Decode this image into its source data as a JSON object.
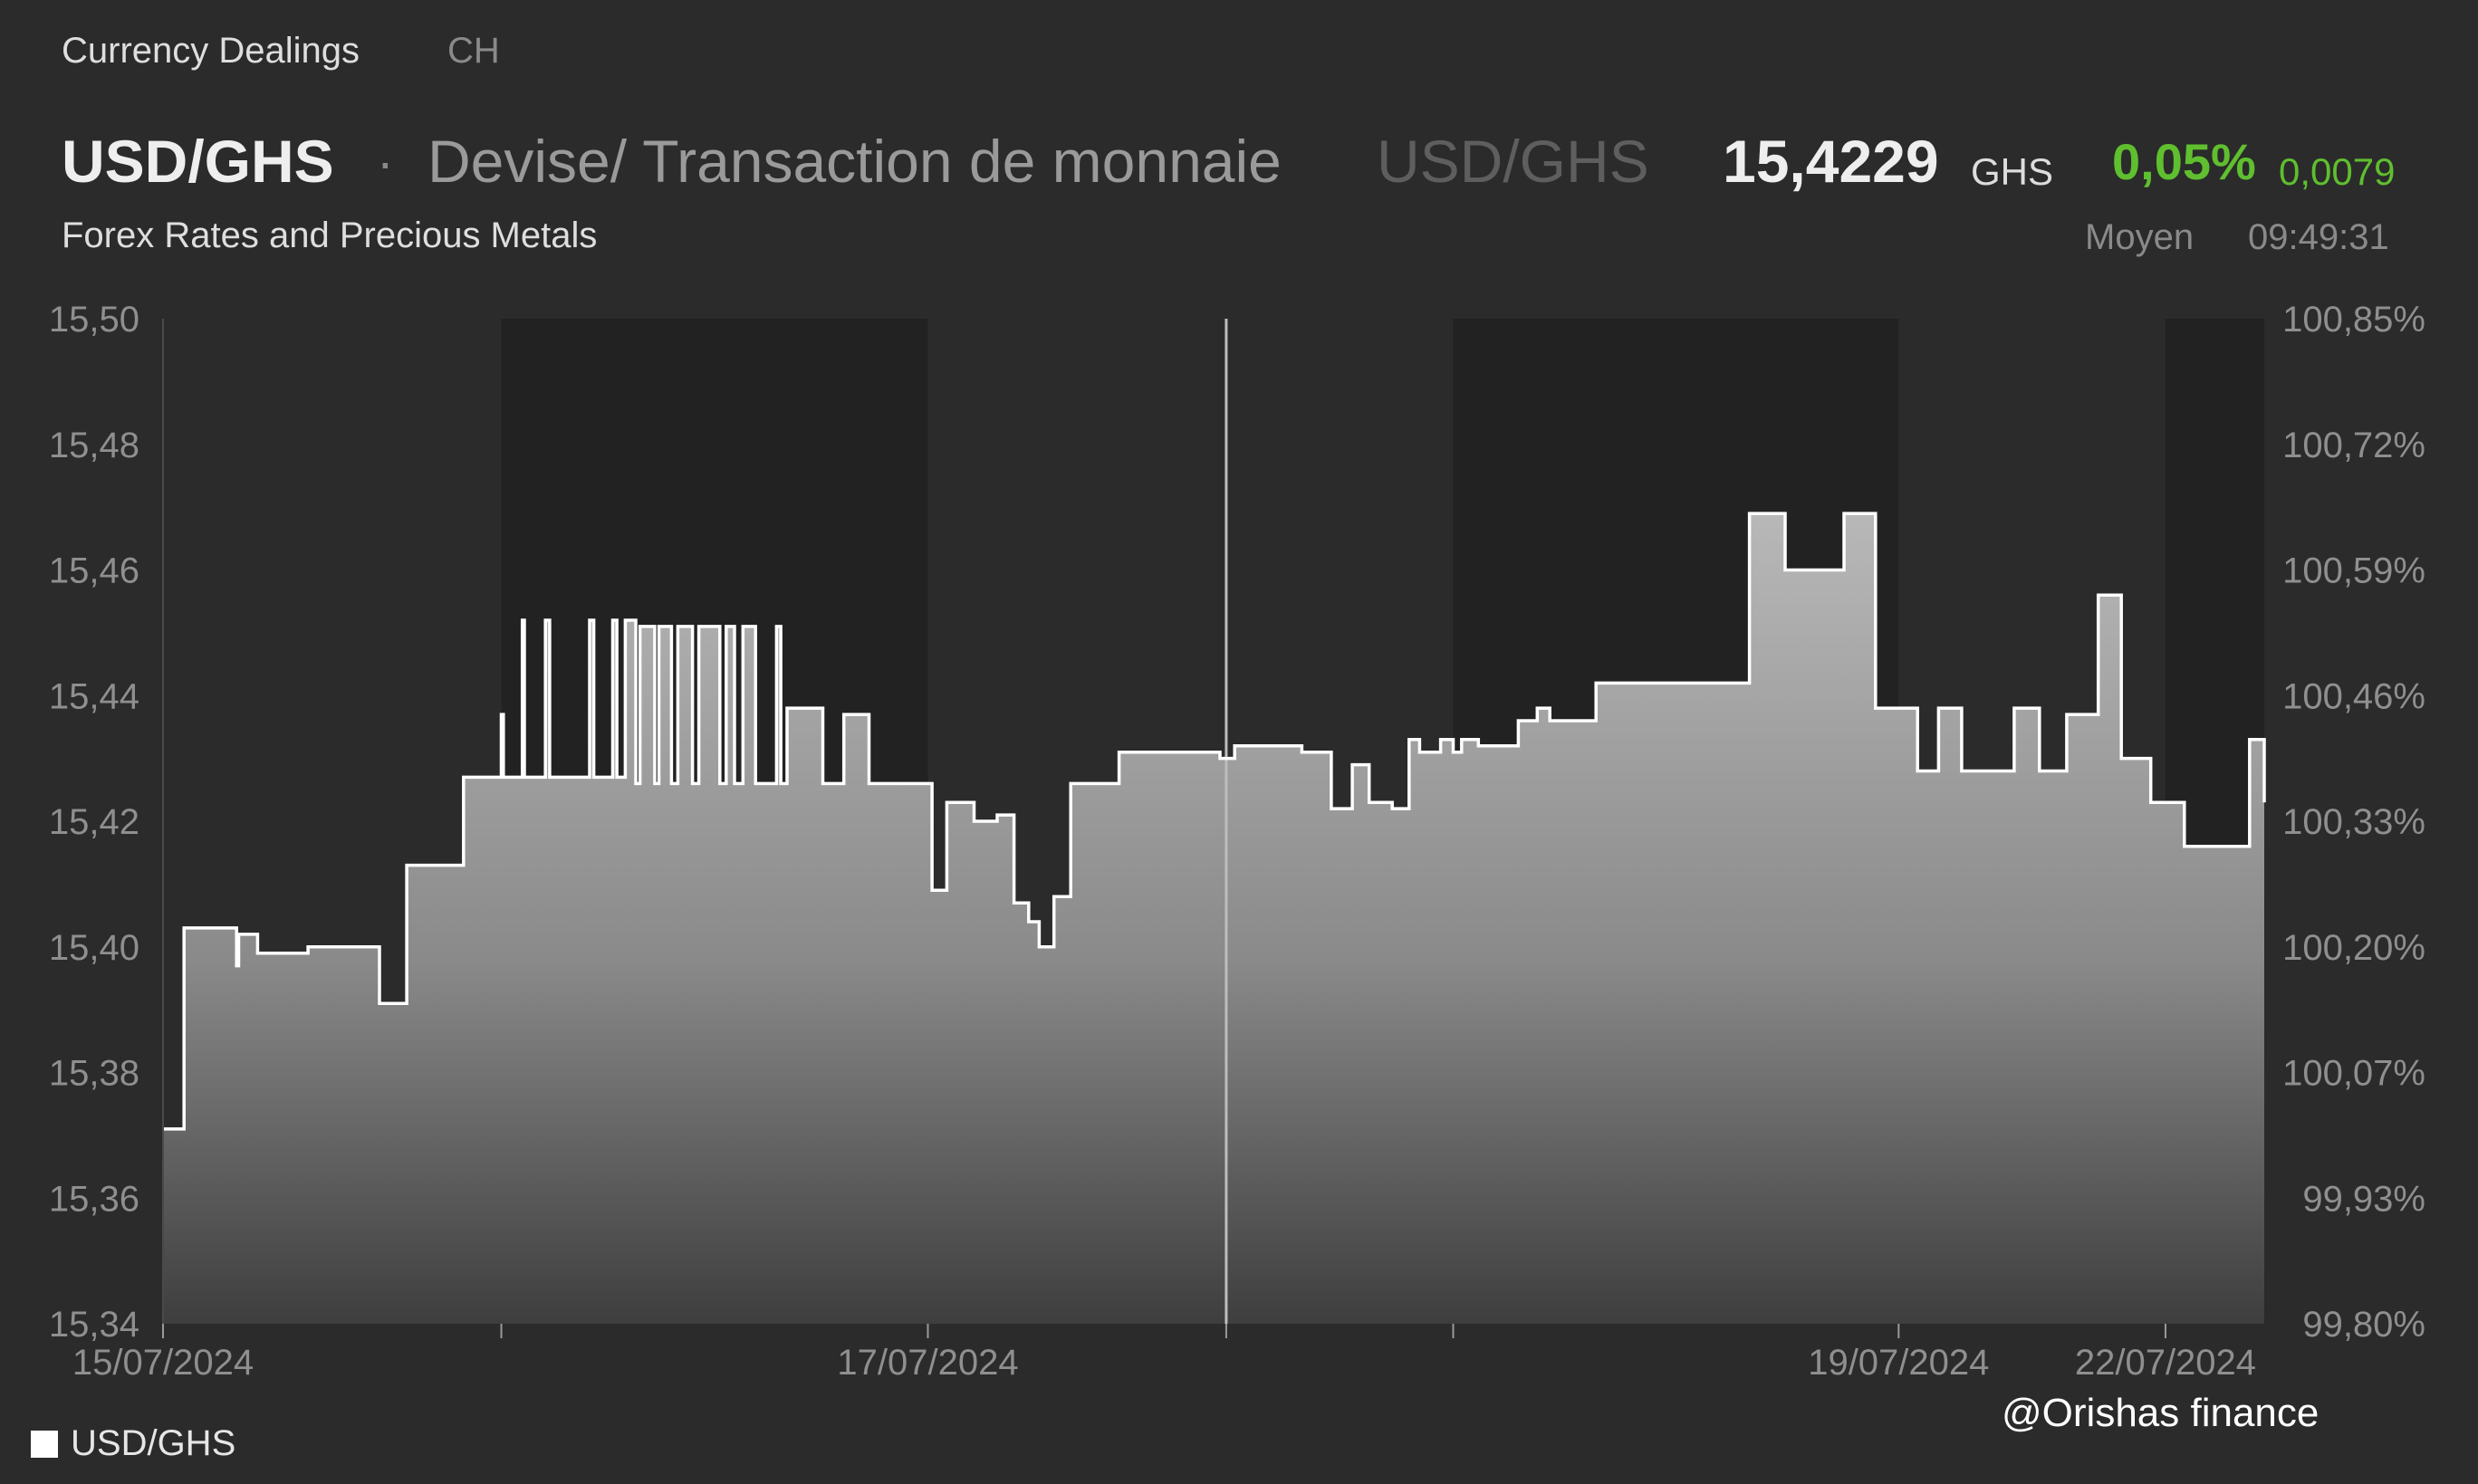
{
  "header": {
    "source_link": "Currency Dealings",
    "exchange": "CH",
    "symbol": "USD/GHS",
    "separator": "·",
    "description": "Devise/ Transaction de monnaie",
    "symbol_repeat": "USD/GHS",
    "price": "15,4229",
    "price_unit": "GHS",
    "change_pct": "0,05%",
    "change_abs": "0,0079",
    "subtitle": "Forex Rates and Precious Metals",
    "quote_type": "Moyen",
    "quote_time": "09:49:31"
  },
  "legend_label": "USD/GHS",
  "watermark": "@Orishas finance",
  "colors": {
    "background": "#2b2b2b",
    "session_shade": "#222222",
    "line": "#ffffff",
    "positive": "#5fbf2f"
  },
  "chart_data": {
    "type": "area",
    "series": [
      {
        "name": "USD/GHS",
        "x": [
          0,
          1,
          3.2,
          3.5,
          3.6,
          4.4,
          4.5,
          4.9,
          6.8,
          6.9,
          10.2,
          10.3,
          11.6,
          11.7,
          13,
          13.4,
          14.2,
          14.3,
          16.1,
          16.2,
          17.1,
          17.2,
          18.2,
          18.4,
          19.3,
          20.3,
          20.5,
          21.4,
          21.6,
          22,
          22.5,
          22.7,
          23.4,
          23.6,
          24.2,
          24.5,
          25.2,
          25.5,
          26.5,
          26.8,
          27.2,
          27.6,
          28.2,
          29.2,
          29.4,
          29.7,
          31.4,
          32.4,
          33.6,
          35.6,
          36.4,
          36.6,
          37.3,
          38.6,
          39.7,
          40.5,
          41.2,
          41.7,
          42.4,
          43.2,
          44.1,
          45.5,
          48.7,
          50,
          50.3,
          51,
          51.8,
          52.2,
          53.9,
          54.2,
          55.6,
          56.6,
          57.4,
          58.5,
          59.3,
          59.8,
          60.8,
          61.4,
          61.8,
          62.6,
          64.5,
          65.4,
          66,
          67.4,
          68.2,
          69.6,
          70.8,
          73.8,
          75.5,
          76,
          76.6,
          77.2,
          80,
          81.5,
          82.6,
          83.5,
          84.5,
          85.6,
          88.1,
          89.3,
          90.6,
          92.1,
          93.2,
          94.6,
          96.2,
          97.3,
          98,
          99,
          99.3,
          100
        ],
        "y": [
          15.371,
          15.403,
          15.403,
          15.397,
          15.402,
          15.402,
          15.399,
          15.399,
          15.399,
          15.4,
          15.4,
          15.391,
          15.413,
          15.413,
          15.413,
          15.413,
          15.413,
          15.427,
          15.437,
          15.427,
          15.452,
          15.427,
          15.452,
          15.427,
          15.427,
          15.452,
          15.427,
          15.452,
          15.427,
          15.452,
          15.426,
          15.451,
          15.426,
          15.451,
          15.426,
          15.451,
          15.426,
          15.451,
          15.426,
          15.451,
          15.426,
          15.451,
          15.426,
          15.451,
          15.426,
          15.438,
          15.426,
          15.437,
          15.426,
          15.426,
          15.426,
          15.409,
          15.423,
          15.42,
          15.421,
          15.407,
          15.404,
          15.4,
          15.408,
          15.426,
          15.426,
          15.431,
          15.431,
          15.431,
          15.43,
          15.432,
          15.432,
          15.432,
          15.432,
          15.431,
          15.422,
          15.429,
          15.423,
          15.422,
          15.433,
          15.431,
          15.433,
          15.431,
          15.433,
          15.432,
          15.436,
          15.438,
          15.436,
          15.436,
          15.442,
          15.442,
          15.442,
          15.442,
          15.469,
          15.469,
          15.469,
          15.46,
          15.469,
          15.438,
          15.438,
          15.428,
          15.438,
          15.428,
          15.438,
          15.428,
          15.437,
          15.456,
          15.43,
          15.423,
          15.416,
          15.416,
          15.416,
          15.416,
          15.433,
          15.423
        ]
      }
    ],
    "x_ticks": [
      "15/07/2024",
      "17/07/2024",
      "19/07/2024",
      "22/07/2024"
    ],
    "x_tick_positions": [
      0,
      36.4,
      82.6,
      95.3
    ],
    "minor_tick_positions": [
      16.1,
      50.6,
      61.4
    ],
    "y_left_ticks": [
      "15,50",
      "15,48",
      "15,46",
      "15,44",
      "15,42",
      "15,40",
      "15,38",
      "15,36",
      "15,34"
    ],
    "y_right_ticks": [
      "100,85%",
      "100,72%",
      "100,59%",
      "100,46%",
      "100,33%",
      "100,20%",
      "100,07%",
      "99,93%",
      "99,80%"
    ],
    "ylim": [
      15.34,
      15.5
    ],
    "xlim": [
      0,
      100
    ],
    "shaded_sessions": [
      [
        16.1,
        36.4
      ],
      [
        61.4,
        82.6
      ],
      [
        95.3,
        100
      ]
    ],
    "crosshair_x": 50.6,
    "legend": "bottom-left"
  }
}
